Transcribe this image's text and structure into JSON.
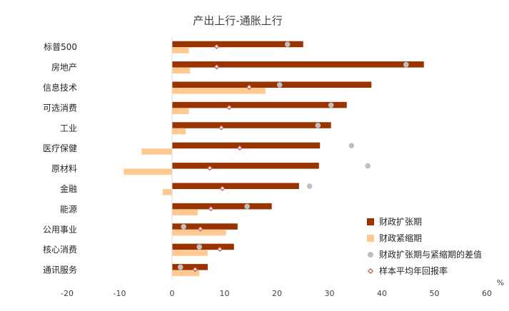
{
  "chart_data": {
    "type": "bar",
    "orientation": "horizontal",
    "title": "产出上行-通胀上行",
    "xlabel": "%",
    "xlim": [
      -20,
      60
    ],
    "xticks": [
      -20,
      -10,
      0,
      10,
      20,
      30,
      40,
      50,
      60
    ],
    "grid": false,
    "legend_position": "bottom-right",
    "categories": [
      "标普500",
      "房地产",
      "信息技术",
      "可选消费",
      "工业",
      "医疗保健",
      "原材料",
      "金融",
      "能源",
      "公用事业",
      "核心消费",
      "通讯服务"
    ],
    "series": [
      {
        "name": "财政扩张期",
        "kind": "bar",
        "color": "#993300",
        "values": [
          25.0,
          48.0,
          38.0,
          33.3,
          30.3,
          28.2,
          28.0,
          24.2,
          19.0,
          12.5,
          11.8,
          6.8
        ]
      },
      {
        "name": "财政紧缩期",
        "kind": "bar",
        "color": "#FFC991",
        "values": [
          3.2,
          3.4,
          17.8,
          3.2,
          2.6,
          -5.8,
          -9.2,
          -1.8,
          4.9,
          10.3,
          6.8,
          5.2
        ]
      },
      {
        "name": "财政扩张期与紧缩期的差值",
        "kind": "marker",
        "color": "#BFBFBF",
        "values": [
          22.0,
          44.6,
          20.5,
          30.3,
          27.8,
          34.2,
          37.3,
          26.2,
          14.3,
          2.2,
          5.2,
          1.6
        ]
      },
      {
        "name": "样本平均年回报率",
        "kind": "marker",
        "color": "#C0504D",
        "values": [
          8.5,
          8.5,
          14.7,
          10.9,
          9.4,
          12.9,
          7.2,
          9.6,
          7.4,
          5.4,
          9.1,
          4.4
        ]
      }
    ]
  }
}
